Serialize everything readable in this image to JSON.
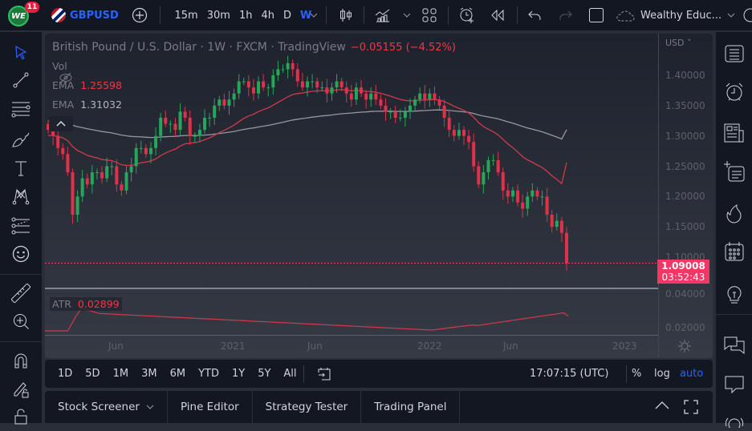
{
  "topbar": {
    "logo_text": "WE",
    "notification_count": "11",
    "symbol": "GBPUSD",
    "intervals": [
      "15m",
      "30m",
      "1h",
      "4h",
      "D",
      "W"
    ],
    "active_interval": "W",
    "layout_name": "Wealthy Educ...",
    "accent": "#2962ff"
  },
  "legend": {
    "title": "British Pound / U.S. Dollar · 1W · FXCM · TradingView",
    "change": "−0.05155 (−4.52%)",
    "vol_label": "Vol",
    "ema1_label": "EMA",
    "ema1_value": "1.25598",
    "ema2_label": "EMA",
    "ema2_value": "1.31032",
    "atr_label": "ATR",
    "atr_value": "0.02899"
  },
  "price_axis": {
    "currency": "USD",
    "labels": [
      "1.40000",
      "1.35000",
      "1.30000",
      "1.25000",
      "1.20000",
      "1.15000",
      "1.10000"
    ],
    "last_price": "1.09008",
    "countdown": "03:52:43",
    "atr_labels": [
      "0.04000",
      "0.02000"
    ]
  },
  "time_axis": {
    "labels": [
      "Jun",
      "2021",
      "Jun",
      "2022",
      "Jun",
      "2023"
    ]
  },
  "bottom_toolbar": {
    "ranges": [
      "1D",
      "5D",
      "1M",
      "3M",
      "6M",
      "YTD",
      "1Y",
      "5Y",
      "All"
    ],
    "clock": "17:07:15 (UTC)",
    "percent_label": "%",
    "log_label": "log",
    "auto_label": "auto"
  },
  "panel_tabs": [
    "Stock Screener",
    "Pine Editor",
    "Strategy Tester",
    "Trading Panel"
  ],
  "colors": {
    "up": "#26a65b",
    "down": "#e0314a",
    "ema_fast": "#d2394b",
    "ema_slow": "#9598a1",
    "price_line": "#f23665"
  },
  "chart_data": {
    "type": "candlestick",
    "title": "British Pound / U.S. Dollar · 1W · FXCM",
    "ylim": [
      1.07,
      1.43
    ],
    "x_ticks": [
      "Jun",
      "2021",
      "Jun",
      "2022",
      "Jun",
      "2023"
    ],
    "y_ticks": [
      1.4,
      1.35,
      1.3,
      1.25,
      1.2,
      1.15,
      1.1
    ],
    "last": 1.09008,
    "closes": [
      1.31,
      1.3,
      1.28,
      1.27,
      1.24,
      1.17,
      1.2,
      1.23,
      1.22,
      1.24,
      1.24,
      1.23,
      1.25,
      1.25,
      1.22,
      1.21,
      1.24,
      1.25,
      1.28,
      1.28,
      1.27,
      1.28,
      1.3,
      1.33,
      1.32,
      1.32,
      1.31,
      1.34,
      1.33,
      1.3,
      1.3,
      1.31,
      1.33,
      1.33,
      1.35,
      1.36,
      1.35,
      1.36,
      1.37,
      1.39,
      1.39,
      1.38,
      1.37,
      1.39,
      1.38,
      1.38,
      1.4,
      1.41,
      1.41,
      1.42,
      1.41,
      1.39,
      1.38,
      1.39,
      1.39,
      1.38,
      1.38,
      1.37,
      1.38,
      1.39,
      1.38,
      1.37,
      1.36,
      1.38,
      1.37,
      1.36,
      1.37,
      1.36,
      1.35,
      1.34,
      1.34,
      1.33,
      1.33,
      1.34,
      1.35,
      1.36,
      1.37,
      1.36,
      1.37,
      1.36,
      1.35,
      1.33,
      1.31,
      1.3,
      1.31,
      1.3,
      1.29,
      1.25,
      1.22,
      1.24,
      1.26,
      1.26,
      1.24,
      1.21,
      1.2,
      1.21,
      1.19,
      1.18,
      1.2,
      1.21,
      1.2,
      1.2,
      1.17,
      1.15,
      1.16,
      1.14,
      1.09
    ],
    "ema_fast_end": 1.25598,
    "ema_slow_end": 1.31032,
    "atr": {
      "ylim": [
        0.015,
        0.045
      ],
      "last": 0.02899
    }
  }
}
